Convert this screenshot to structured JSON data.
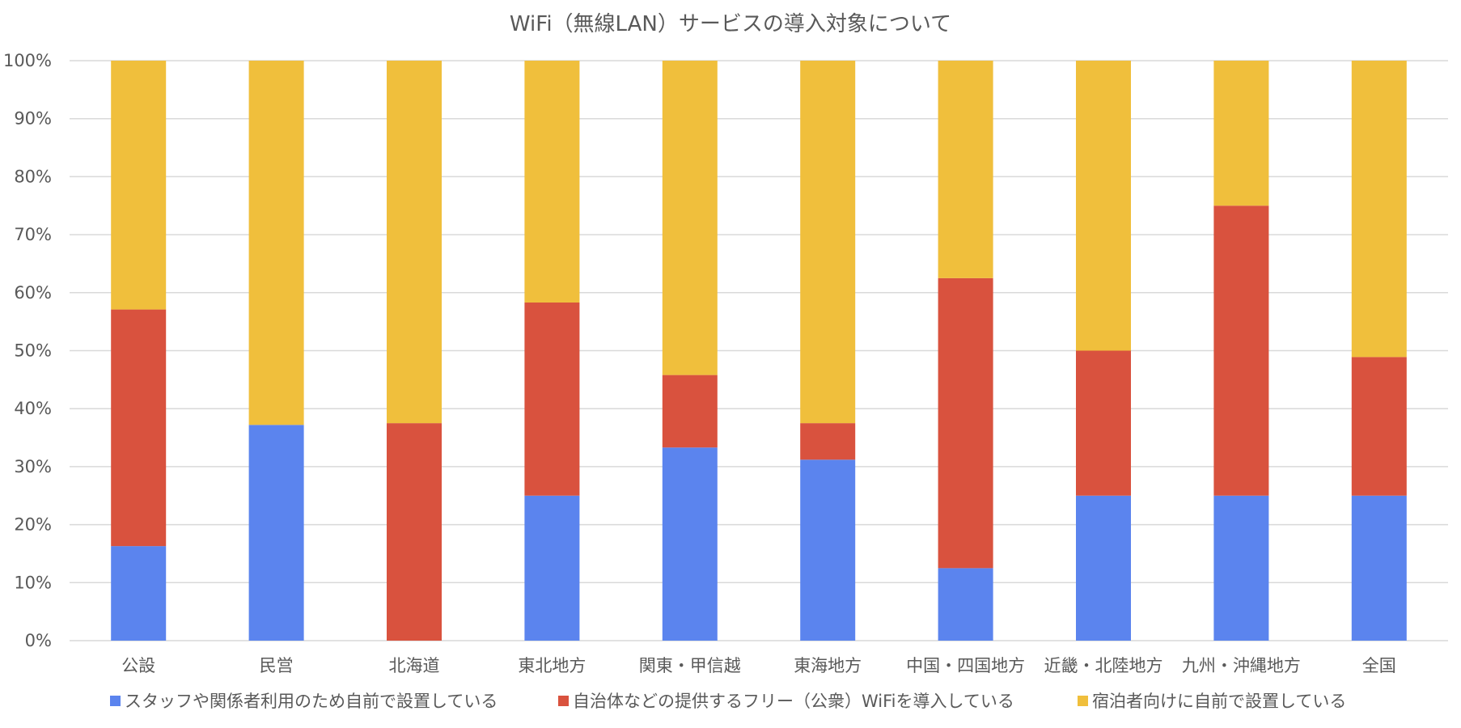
{
  "chart_data": {
    "type": "bar",
    "stacked": true,
    "title": "WiFi（無線LAN）サービスの導入対象について",
    "categories": [
      "公設",
      "民営",
      "北海道",
      "東北地方",
      "関東・甲信越",
      "東海地方",
      "中国・四国地方",
      "近畿・北陸地方",
      "九州・沖縄地方",
      "全国"
    ],
    "series": [
      {
        "name": "スタッフや関係者利用のため自前で設置している",
        "color": "#5b84ee",
        "values": [
          16.3,
          37.2,
          0,
          25.0,
          33.3,
          31.2,
          12.5,
          25.0,
          25.0,
          25.0
        ]
      },
      {
        "name": "自治体などの提供するフリー（公衆）WiFiを導入している",
        "color": "#d9523e",
        "values": [
          40.8,
          0,
          37.5,
          33.3,
          12.5,
          6.3,
          50.0,
          25.0,
          50.0,
          23.9
        ]
      },
      {
        "name": "宿泊者向けに自前で設置している",
        "color": "#f0bf3c",
        "values": [
          42.9,
          62.8,
          62.5,
          41.7,
          54.2,
          62.5,
          37.5,
          50.0,
          25.0,
          51.1
        ]
      }
    ],
    "yticks": [
      "0%",
      "10%",
      "20%",
      "30%",
      "40%",
      "50%",
      "60%",
      "70%",
      "80%",
      "90%",
      "100%"
    ],
    "ylim": [
      0,
      100
    ],
    "grid": true,
    "legend": "bottom",
    "xlabel": "",
    "ylabel": ""
  }
}
